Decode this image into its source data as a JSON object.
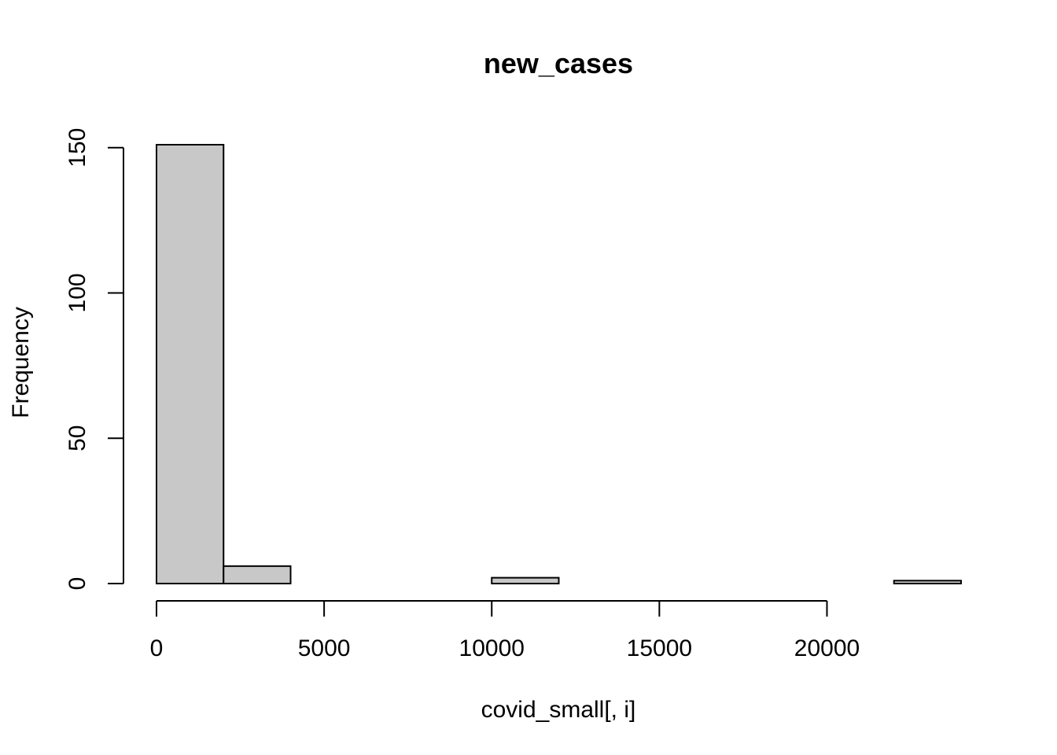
{
  "chart_data": {
    "type": "bar",
    "variant": "histogram",
    "title": "new_cases",
    "xlabel": "covid_small[, i]",
    "ylabel": "Frequency",
    "bin_edges": [
      0,
      2000,
      4000,
      6000,
      8000,
      10000,
      12000,
      14000,
      16000,
      18000,
      20000,
      22000,
      24000
    ],
    "values": [
      151,
      6,
      0,
      0,
      0,
      2,
      0,
      0,
      0,
      0,
      0,
      1
    ],
    "xlim": [
      0,
      24000
    ],
    "ylim": [
      0,
      151
    ],
    "x_ticks": [
      0,
      5000,
      10000,
      15000,
      20000
    ],
    "x_tick_labels": [
      "0",
      "5000",
      "10000",
      "15000",
      "20000"
    ],
    "y_ticks": [
      0,
      50,
      100,
      150
    ],
    "y_tick_labels": [
      "0",
      "50",
      "100",
      "150"
    ],
    "grid": false,
    "legend": "none",
    "bar_color": "#c8c8c8",
    "edge_color": "#000000"
  }
}
